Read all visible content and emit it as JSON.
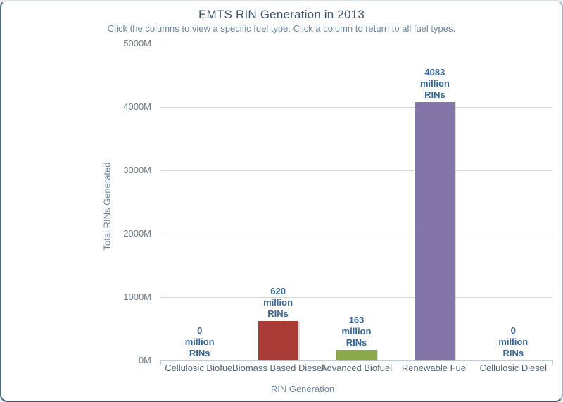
{
  "chart_data": {
    "type": "bar",
    "title": "EMTS RIN Generation in 2013",
    "subtitle": "Click the columns to view a specific fuel type. Click a column to return to all fuel types.",
    "xlabel": "RIN Generation",
    "ylabel": "Total RINs Generated",
    "categories": [
      "Cellulosic Biofuel",
      "Biomass Based Diesel",
      "Advanced Biofuel",
      "Renewable Fuel",
      "Cellulosic Diesel"
    ],
    "values": [
      0,
      620,
      163,
      4083,
      0
    ],
    "unit": "million RINs",
    "data_labels": [
      [
        "0",
        "million",
        "RINs"
      ],
      [
        "620",
        "million",
        "RINs"
      ],
      [
        "163",
        "million",
        "RINs"
      ],
      [
        "4083",
        "million",
        "RINs"
      ],
      [
        "0",
        "million",
        "RINs"
      ]
    ],
    "bar_colors": [
      null,
      "#a93c37",
      "#8ba84b",
      "#8475a8",
      null
    ],
    "ylim": [
      0,
      5000
    ],
    "ytick_interval": 1000,
    "ytick_labels": [
      "0M",
      "1000M",
      "2000M",
      "3000M",
      "4000M",
      "5000M"
    ],
    "grid": true,
    "legend": "none"
  },
  "style": {
    "title_color": "#3e576f",
    "subtitle_color": "#6d86a0",
    "axis_title_color": "#6d86a0",
    "tick_label_color": "#6b7a87",
    "category_label_color": "#546472",
    "data_label_color": "#35679a",
    "grid_color": "#d6d6d6",
    "axis_line_color": "#c3cbd4",
    "card_border_color": "#3f5a6d",
    "background": "#ffffff"
  }
}
